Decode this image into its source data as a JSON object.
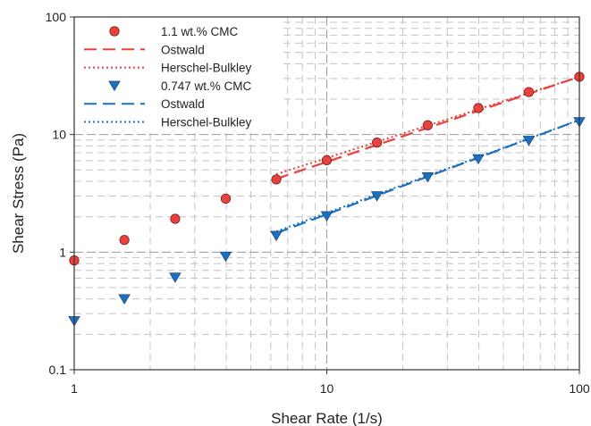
{
  "chart_data": {
    "type": "scatter",
    "title": "",
    "xlabel": "Shear Rate (1/s)",
    "ylabel": "Shear Stress (Pa)",
    "xscale": "log",
    "yscale": "log",
    "xlim": [
      1,
      100
    ],
    "ylim": [
      0.1,
      100
    ],
    "x_ticks": [
      "1",
      "10",
      "100"
    ],
    "y_ticks": [
      "0.1",
      "1",
      "10",
      "100"
    ],
    "grid": "major and minor, dashed",
    "legend_position": "top-left",
    "series": [
      {
        "name": "1.1 wt.% CMC",
        "kind": "markers",
        "marker": "circle",
        "color": "#e8413e",
        "x": [
          1,
          1.58,
          2.51,
          3.98,
          6.31,
          10,
          15.8,
          25.1,
          39.8,
          63.1,
          100
        ],
        "y": [
          0.85,
          1.27,
          1.92,
          2.85,
          4.15,
          6.05,
          8.55,
          12.0,
          16.8,
          23.0,
          31.0
        ]
      },
      {
        "name": "Ostwald",
        "kind": "line",
        "dash": "long-dash",
        "color": "#e8413e",
        "x": [
          6.31,
          100
        ],
        "y": [
          4.2,
          31.0
        ]
      },
      {
        "name": "Herschel-Bulkley",
        "kind": "line",
        "dash": "dotted",
        "color": "#e8413e",
        "x": [
          6.31,
          100
        ],
        "y": [
          4.6,
          31.0
        ]
      },
      {
        "name": "0.747 wt.% CMC",
        "kind": "markers",
        "marker": "triangle-down",
        "color": "#1f6fc0",
        "x": [
          1,
          1.58,
          2.51,
          3.98,
          6.31,
          10,
          15.8,
          25.1,
          39.8,
          63.1,
          100
        ],
        "y": [
          0.26,
          0.4,
          0.61,
          0.92,
          1.38,
          2.03,
          3.0,
          4.35,
          6.2,
          8.9,
          12.8
        ]
      },
      {
        "name": "Ostwald",
        "kind": "line",
        "dash": "long-dash",
        "color": "#1f6fc0",
        "x": [
          6.31,
          100
        ],
        "y": [
          1.45,
          13.3
        ]
      },
      {
        "name": "Herschel-Bulkley",
        "kind": "line",
        "dash": "dotted",
        "color": "#1f6fc0",
        "x": [
          6.31,
          100
        ],
        "y": [
          1.5,
          13.3
        ]
      }
    ]
  }
}
